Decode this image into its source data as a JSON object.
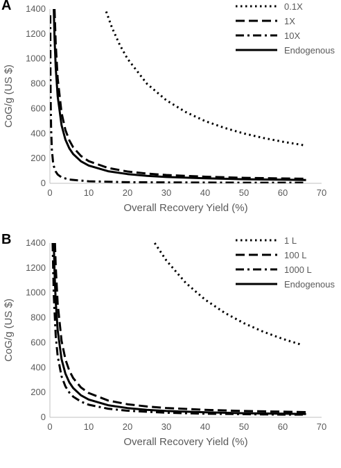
{
  "chart_data": [
    {
      "panel_label": "A",
      "type": "line",
      "xlabel": "Overall Recovery Yield (%)",
      "ylabel": "CoG/g (US $)",
      "xlim": [
        0,
        70
      ],
      "ylim": [
        0,
        1400
      ],
      "xticks": [
        0,
        10,
        20,
        30,
        40,
        50,
        60,
        70
      ],
      "yticks": [
        0,
        200,
        400,
        600,
        800,
        1000,
        1200,
        1400
      ],
      "grid": false,
      "legend_position": "top-right",
      "series": [
        {
          "name": "0.1X",
          "style": "dotted",
          "x": [
            14.5,
            16,
            18,
            20,
            25,
            30,
            35,
            40,
            45,
            50,
            55,
            60,
            66
          ],
          "y": [
            1380,
            1250,
            1112,
            1000,
            800,
            667,
            572,
            500,
            445,
            400,
            364,
            334,
            303
          ]
        },
        {
          "name": "1X",
          "style": "dashed",
          "x": [
            1.2,
            1.5,
            2,
            3,
            4,
            5,
            6,
            8,
            10,
            15,
            20,
            25,
            30,
            40,
            50,
            60,
            66
          ],
          "y": [
            1400,
            1123,
            845,
            567,
            428,
            345,
            289,
            220,
            178,
            123,
            95,
            78,
            67,
            53,
            44,
            39,
            37
          ]
        },
        {
          "name": "10X",
          "style": "dashdot",
          "x": [
            0.1,
            0.15,
            0.2,
            0.3,
            0.5,
            0.8,
            1,
            1.5,
            2,
            3,
            5,
            10,
            20,
            30,
            40,
            50,
            60,
            66
          ],
          "y": [
            1350,
            900,
            675,
            450,
            272,
            172,
            139,
            94,
            71,
            48,
            30,
            16,
            9,
            7,
            6,
            5,
            5,
            5
          ]
        },
        {
          "name": "Endogenous",
          "style": "solid",
          "x": [
            1.0,
            1.2,
            1.5,
            2,
            3,
            4,
            5,
            6,
            8,
            10,
            15,
            20,
            25,
            30,
            40,
            50,
            60,
            66
          ],
          "y": [
            1400,
            1165,
            930,
            700,
            467,
            351,
            281,
            235,
            177,
            143,
            97,
            74,
            60,
            51,
            40,
            33,
            29,
            27
          ]
        }
      ]
    },
    {
      "panel_label": "B",
      "type": "line",
      "xlabel": "Overall Recovery Yield (%)",
      "ylabel": "CoG/g (US $)",
      "xlim": [
        0,
        70
      ],
      "ylim": [
        0,
        1400
      ],
      "xticks": [
        0,
        10,
        20,
        30,
        40,
        50,
        60,
        70
      ],
      "yticks": [
        0,
        200,
        400,
        600,
        800,
        1000,
        1200,
        1400
      ],
      "grid": false,
      "legend_position": "top-right",
      "series": [
        {
          "name": "1 L",
          "style": "dotted",
          "x": [
            27,
            30,
            35,
            40,
            45,
            50,
            55,
            60,
            65
          ],
          "y": [
            1400,
            1260,
            1080,
            945,
            840,
            756,
            687,
            630,
            581
          ]
        },
        {
          "name": "100 L",
          "style": "dashed",
          "x": [
            1.3,
            1.5,
            2,
            3,
            4,
            5,
            6,
            8,
            10,
            15,
            20,
            25,
            30,
            40,
            50,
            60,
            66
          ],
          "y": [
            1400,
            1215,
            915,
            615,
            465,
            375,
            315,
            240,
            195,
            135,
            105,
            87,
            75,
            60,
            51,
            45,
            42
          ]
        },
        {
          "name": "1000 L",
          "style": "dashdot",
          "x": [
            0.7,
            1,
            1.5,
            2,
            3,
            4,
            5,
            6,
            8,
            10,
            15,
            20,
            30,
            40,
            50,
            60,
            66
          ],
          "y": [
            1400,
            980,
            655,
            492,
            329,
            248,
            199,
            166,
            126,
            101,
            69,
            53,
            37,
            29,
            25,
            22,
            21
          ]
        },
        {
          "name": "Endogenous",
          "style": "solid",
          "x": [
            1.0,
            1.2,
            1.5,
            2,
            3,
            4,
            5,
            6,
            8,
            10,
            15,
            20,
            25,
            30,
            40,
            50,
            60,
            66
          ],
          "y": [
            1400,
            1165,
            930,
            700,
            467,
            351,
            281,
            235,
            177,
            143,
            97,
            74,
            60,
            51,
            40,
            33,
            29,
            27
          ]
        }
      ]
    }
  ]
}
